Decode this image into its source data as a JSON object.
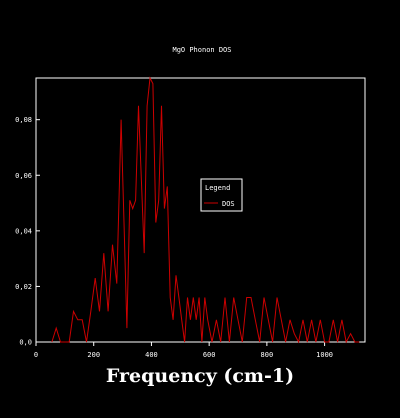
{
  "chart_data": {
    "type": "line",
    "title": "MgO Phonon DOS",
    "xlabel": "Frequency (cm-1)",
    "ylabel": "",
    "xlim": [
      0,
      1140
    ],
    "ylim": [
      0,
      0.095
    ],
    "x_ticks": [
      0,
      200,
      400,
      600,
      800,
      1000
    ],
    "x_tick_labels": [
      "0",
      "200",
      "400",
      "600",
      "800",
      "1000"
    ],
    "y_ticks": [
      0,
      0.02,
      0.04,
      0.06,
      0.08
    ],
    "y_tick_labels": [
      "0,0",
      "0,02",
      "0,04",
      "0,06",
      "0,08"
    ],
    "grid": false,
    "legend": {
      "title": "Legend",
      "placement": "center-right"
    },
    "colors": {
      "background": "#000000",
      "axes": "#ffffff",
      "series": "#cc0000"
    },
    "series": [
      {
        "name": "DOS",
        "x": [
          55,
          70,
          85,
          100,
          115,
          130,
          145,
          160,
          175,
          190,
          205,
          220,
          235,
          250,
          265,
          280,
          295,
          305,
          315,
          325,
          335,
          345,
          355,
          365,
          375,
          385,
          395,
          405,
          415,
          425,
          435,
          445,
          455,
          465,
          475,
          485,
          495,
          505,
          515,
          525,
          535,
          545,
          555,
          565,
          575,
          585,
          595,
          610,
          625,
          640,
          655,
          670,
          685,
          700,
          715,
          730,
          745,
          760,
          775,
          790,
          805,
          820,
          835,
          850,
          865,
          880,
          895,
          910,
          925,
          940,
          955,
          970,
          985,
          1000,
          1015,
          1030,
          1045,
          1060,
          1075,
          1090,
          1105,
          1120
        ],
        "y": [
          0,
          0.005,
          0,
          0,
          0,
          0.011,
          0.008,
          0.008,
          0,
          0.011,
          0.023,
          0.011,
          0.032,
          0.011,
          0.035,
          0.021,
          0.08,
          0.043,
          0.005,
          0.051,
          0.048,
          0.051,
          0.085,
          0.059,
          0.032,
          0.085,
          0.096,
          0.093,
          0.043,
          0.051,
          0.085,
          0.048,
          0.056,
          0.016,
          0.008,
          0.024,
          0.016,
          0.008,
          0,
          0.016,
          0.008,
          0.016,
          0.008,
          0.016,
          0,
          0.016,
          0.008,
          0,
          0.008,
          0,
          0.016,
          0,
          0.016,
          0.008,
          0,
          0.016,
          0.016,
          0.008,
          0,
          0.016,
          0.008,
          0,
          0.016,
          0.008,
          0,
          0.008,
          0.003,
          0,
          0.008,
          0,
          0.008,
          0,
          0.008,
          0,
          0,
          0.008,
          0,
          0.008,
          0,
          0.003,
          0,
          0
        ]
      }
    ]
  }
}
